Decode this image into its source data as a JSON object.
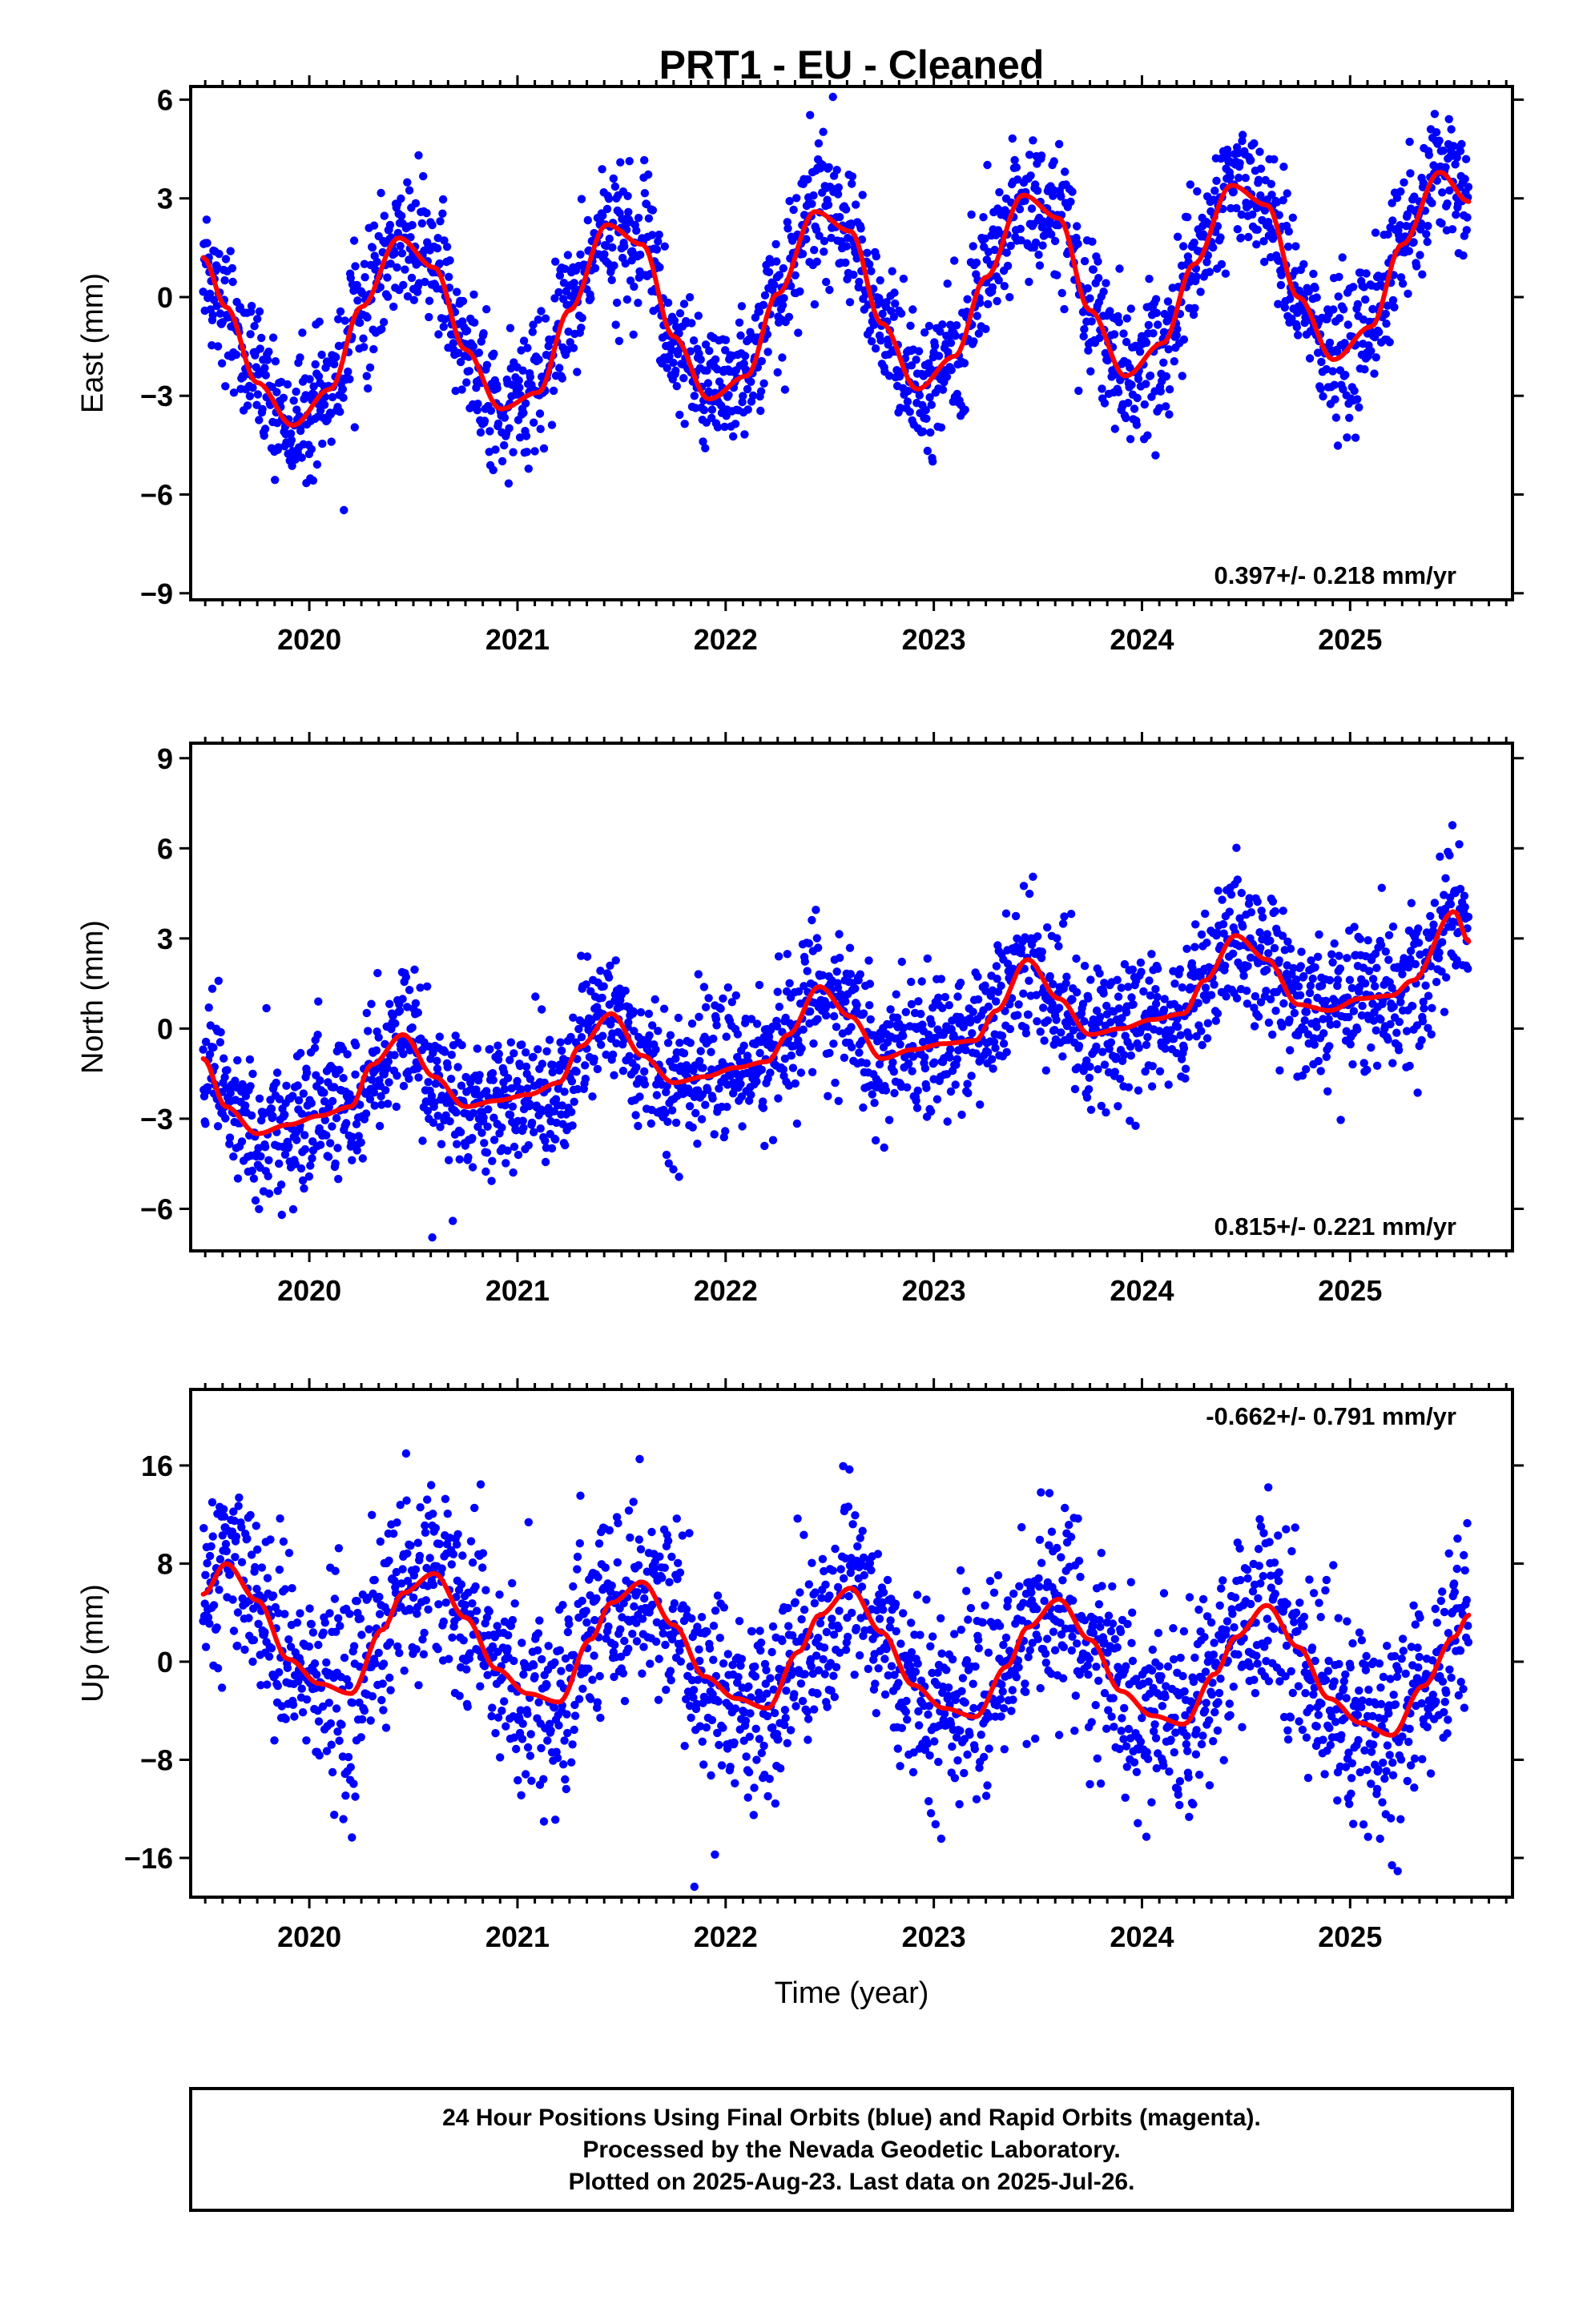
{
  "title": "PRT1  - EU - Cleaned",
  "colors": {
    "final_orbits": "#0000ff",
    "rapid_orbits": "#ff00ff",
    "model": "#ff0000",
    "frame": "#000000"
  },
  "footer": {
    "line1": "24 Hour Positions Using Final Orbits (blue) and Rapid Orbits (magenta).",
    "line2": "Processed by the Nevada Geodetic Laboratory.",
    "line3": "Plotted on 2025-Aug-23. Last data on 2025-Jul-26."
  },
  "chart_data": [
    {
      "type": "scatter",
      "panel": "east",
      "ylabel": "East (mm)",
      "xlabel": "",
      "xlim": [
        2019.43,
        2025.78
      ],
      "ylim": [
        -9.2,
        6.4
      ],
      "xticks": [
        2020,
        2021,
        2022,
        2023,
        2024,
        2025
      ],
      "xtick_labels": [
        "2020",
        "2021",
        "2022",
        "2023",
        "2024",
        "2025"
      ],
      "yticks": [
        -9,
        -6,
        -3,
        0,
        3,
        6
      ],
      "ytick_labels": [
        "−9",
        "−6",
        "−3",
        "0",
        "3",
        "6"
      ],
      "rate": "0.397+/- 0.218 mm/yr",
      "rate_position": "bottom-right",
      "grid": false,
      "series": [
        {
          "kind": "points",
          "color": "final_orbits",
          "data_start": 2019.49,
          "data_end": 2025.57,
          "model_trend": {
            "start_value": -1.1,
            "rate": 0.397,
            "annual_amp": 2.8,
            "annual_peak": 0.44
          },
          "scatter_sd": 1.0
        },
        {
          "kind": "model",
          "color": "model",
          "x": [
            2019.49,
            2019.6,
            2019.75,
            2019.92,
            2020.1,
            2020.25,
            2020.43,
            2020.6,
            2020.75,
            2020.92,
            2021.1,
            2021.25,
            2021.43,
            2021.6,
            2021.75,
            2021.92,
            2022.1,
            2022.25,
            2022.43,
            2022.6,
            2022.75,
            2022.92,
            2023.1,
            2023.25,
            2023.43,
            2023.6,
            2023.75,
            2023.92,
            2024.1,
            2024.25,
            2024.43,
            2024.6,
            2024.75,
            2024.92,
            2025.1,
            2025.25,
            2025.43,
            2025.57
          ],
          "y": [
            1.2,
            -0.3,
            -2.6,
            -3.9,
            -2.8,
            -0.3,
            1.8,
            0.9,
            -1.6,
            -3.4,
            -2.9,
            -0.4,
            2.2,
            1.6,
            -1.2,
            -3.1,
            -2.4,
            0.1,
            2.6,
            2.0,
            -0.8,
            -2.8,
            -1.8,
            0.6,
            3.1,
            2.4,
            -0.4,
            -2.4,
            -1.4,
            1.0,
            3.4,
            2.8,
            0.0,
            -1.9,
            -0.9,
            1.6,
            3.8,
            2.9
          ]
        }
      ]
    },
    {
      "type": "scatter",
      "panel": "north",
      "ylabel": "North (mm)",
      "xlabel": "",
      "xlim": [
        2019.43,
        2025.78
      ],
      "ylim": [
        -7.4,
        9.5
      ],
      "xticks": [
        2020,
        2021,
        2022,
        2023,
        2024,
        2025
      ],
      "xtick_labels": [
        "2020",
        "2021",
        "2022",
        "2023",
        "2024",
        "2025"
      ],
      "yticks": [
        -6,
        -3,
        0,
        3,
        6,
        9
      ],
      "ytick_labels": [
        "−6",
        "−3",
        "0",
        "3",
        "6",
        "9"
      ],
      "rate": "0.815+/- 0.221 mm/yr",
      "rate_position": "bottom-right",
      "grid": false,
      "series": [
        {
          "kind": "points",
          "color": "final_orbits",
          "data_start": 2019.49,
          "data_end": 2025.57,
          "scatter_sd": 1.15
        },
        {
          "kind": "model",
          "color": "model",
          "x": [
            2019.49,
            2019.6,
            2019.75,
            2019.9,
            2020.05,
            2020.2,
            2020.3,
            2020.45,
            2020.6,
            2020.75,
            2020.9,
            2021.05,
            2021.2,
            2021.3,
            2021.45,
            2021.6,
            2021.75,
            2021.9,
            2022.05,
            2022.2,
            2022.3,
            2022.45,
            2022.6,
            2022.75,
            2022.9,
            2023.05,
            2023.2,
            2023.3,
            2023.45,
            2023.6,
            2023.75,
            2023.9,
            2024.05,
            2024.2,
            2024.3,
            2024.45,
            2024.6,
            2024.75,
            2024.9,
            2025.05,
            2025.2,
            2025.3,
            2025.5,
            2025.57
          ],
          "y": [
            -1.0,
            -2.6,
            -3.5,
            -3.2,
            -2.9,
            -2.6,
            -1.2,
            -0.2,
            -1.6,
            -2.6,
            -2.4,
            -2.2,
            -1.8,
            -0.6,
            0.5,
            -0.9,
            -1.8,
            -1.6,
            -1.3,
            -1.1,
            -0.2,
            1.4,
            0.4,
            -1.0,
            -0.7,
            -0.5,
            -0.4,
            0.6,
            2.3,
            1.0,
            -0.2,
            0.0,
            0.3,
            0.5,
            1.6,
            3.1,
            2.3,
            0.8,
            0.6,
            1.0,
            1.1,
            1.6,
            3.9,
            2.9
          ]
        }
      ]
    },
    {
      "type": "scatter",
      "panel": "up",
      "ylabel": "Up (mm)",
      "xlabel": "Time (year)",
      "xlim": [
        2019.43,
        2025.78
      ],
      "ylim": [
        -19.2,
        22.2
      ],
      "xticks": [
        2020,
        2021,
        2022,
        2023,
        2024,
        2025
      ],
      "xtick_labels": [
        "2020",
        "2021",
        "2022",
        "2023",
        "2024",
        "2025"
      ],
      "yticks": [
        -16,
        -8,
        0,
        8,
        16
      ],
      "ytick_labels": [
        "−16",
        "−8",
        "0",
        "8",
        "16"
      ],
      "rate": "-0.662+/- 0.791 mm/yr",
      "rate_position": "top-right",
      "grid": false,
      "series": [
        {
          "kind": "points",
          "color": "final_orbits",
          "data_start": 2019.49,
          "data_end": 2025.57,
          "scatter_sd": 3.9
        },
        {
          "kind": "model",
          "color": "model",
          "x": [
            2019.49,
            2019.6,
            2019.75,
            2019.9,
            2020.05,
            2020.2,
            2020.35,
            2020.45,
            2020.6,
            2020.75,
            2020.9,
            2021.05,
            2021.2,
            2021.35,
            2021.45,
            2021.6,
            2021.75,
            2021.9,
            2022.05,
            2022.2,
            2022.35,
            2022.45,
            2022.6,
            2022.75,
            2022.9,
            2023.05,
            2023.2,
            2023.35,
            2023.45,
            2023.6,
            2023.75,
            2023.9,
            2024.05,
            2024.2,
            2024.35,
            2024.45,
            2024.6,
            2024.75,
            2024.9,
            2025.05,
            2025.2,
            2025.35,
            2025.5,
            2025.57
          ],
          "y": [
            5.5,
            8.0,
            5.0,
            0.2,
            -1.8,
            -2.6,
            2.6,
            5.6,
            7.2,
            3.6,
            -0.6,
            -2.6,
            -3.3,
            1.8,
            4.8,
            6.5,
            3.0,
            -1.2,
            -3.0,
            -3.8,
            0.8,
            3.8,
            6.0,
            2.4,
            -1.9,
            -3.8,
            -4.5,
            -0.4,
            2.8,
            5.1,
            1.8,
            -2.4,
            -4.4,
            -5.1,
            -1.0,
            2.0,
            4.6,
            1.2,
            -3.0,
            -5.0,
            -6.0,
            -2.0,
            2.0,
            3.8
          ]
        }
      ]
    }
  ]
}
